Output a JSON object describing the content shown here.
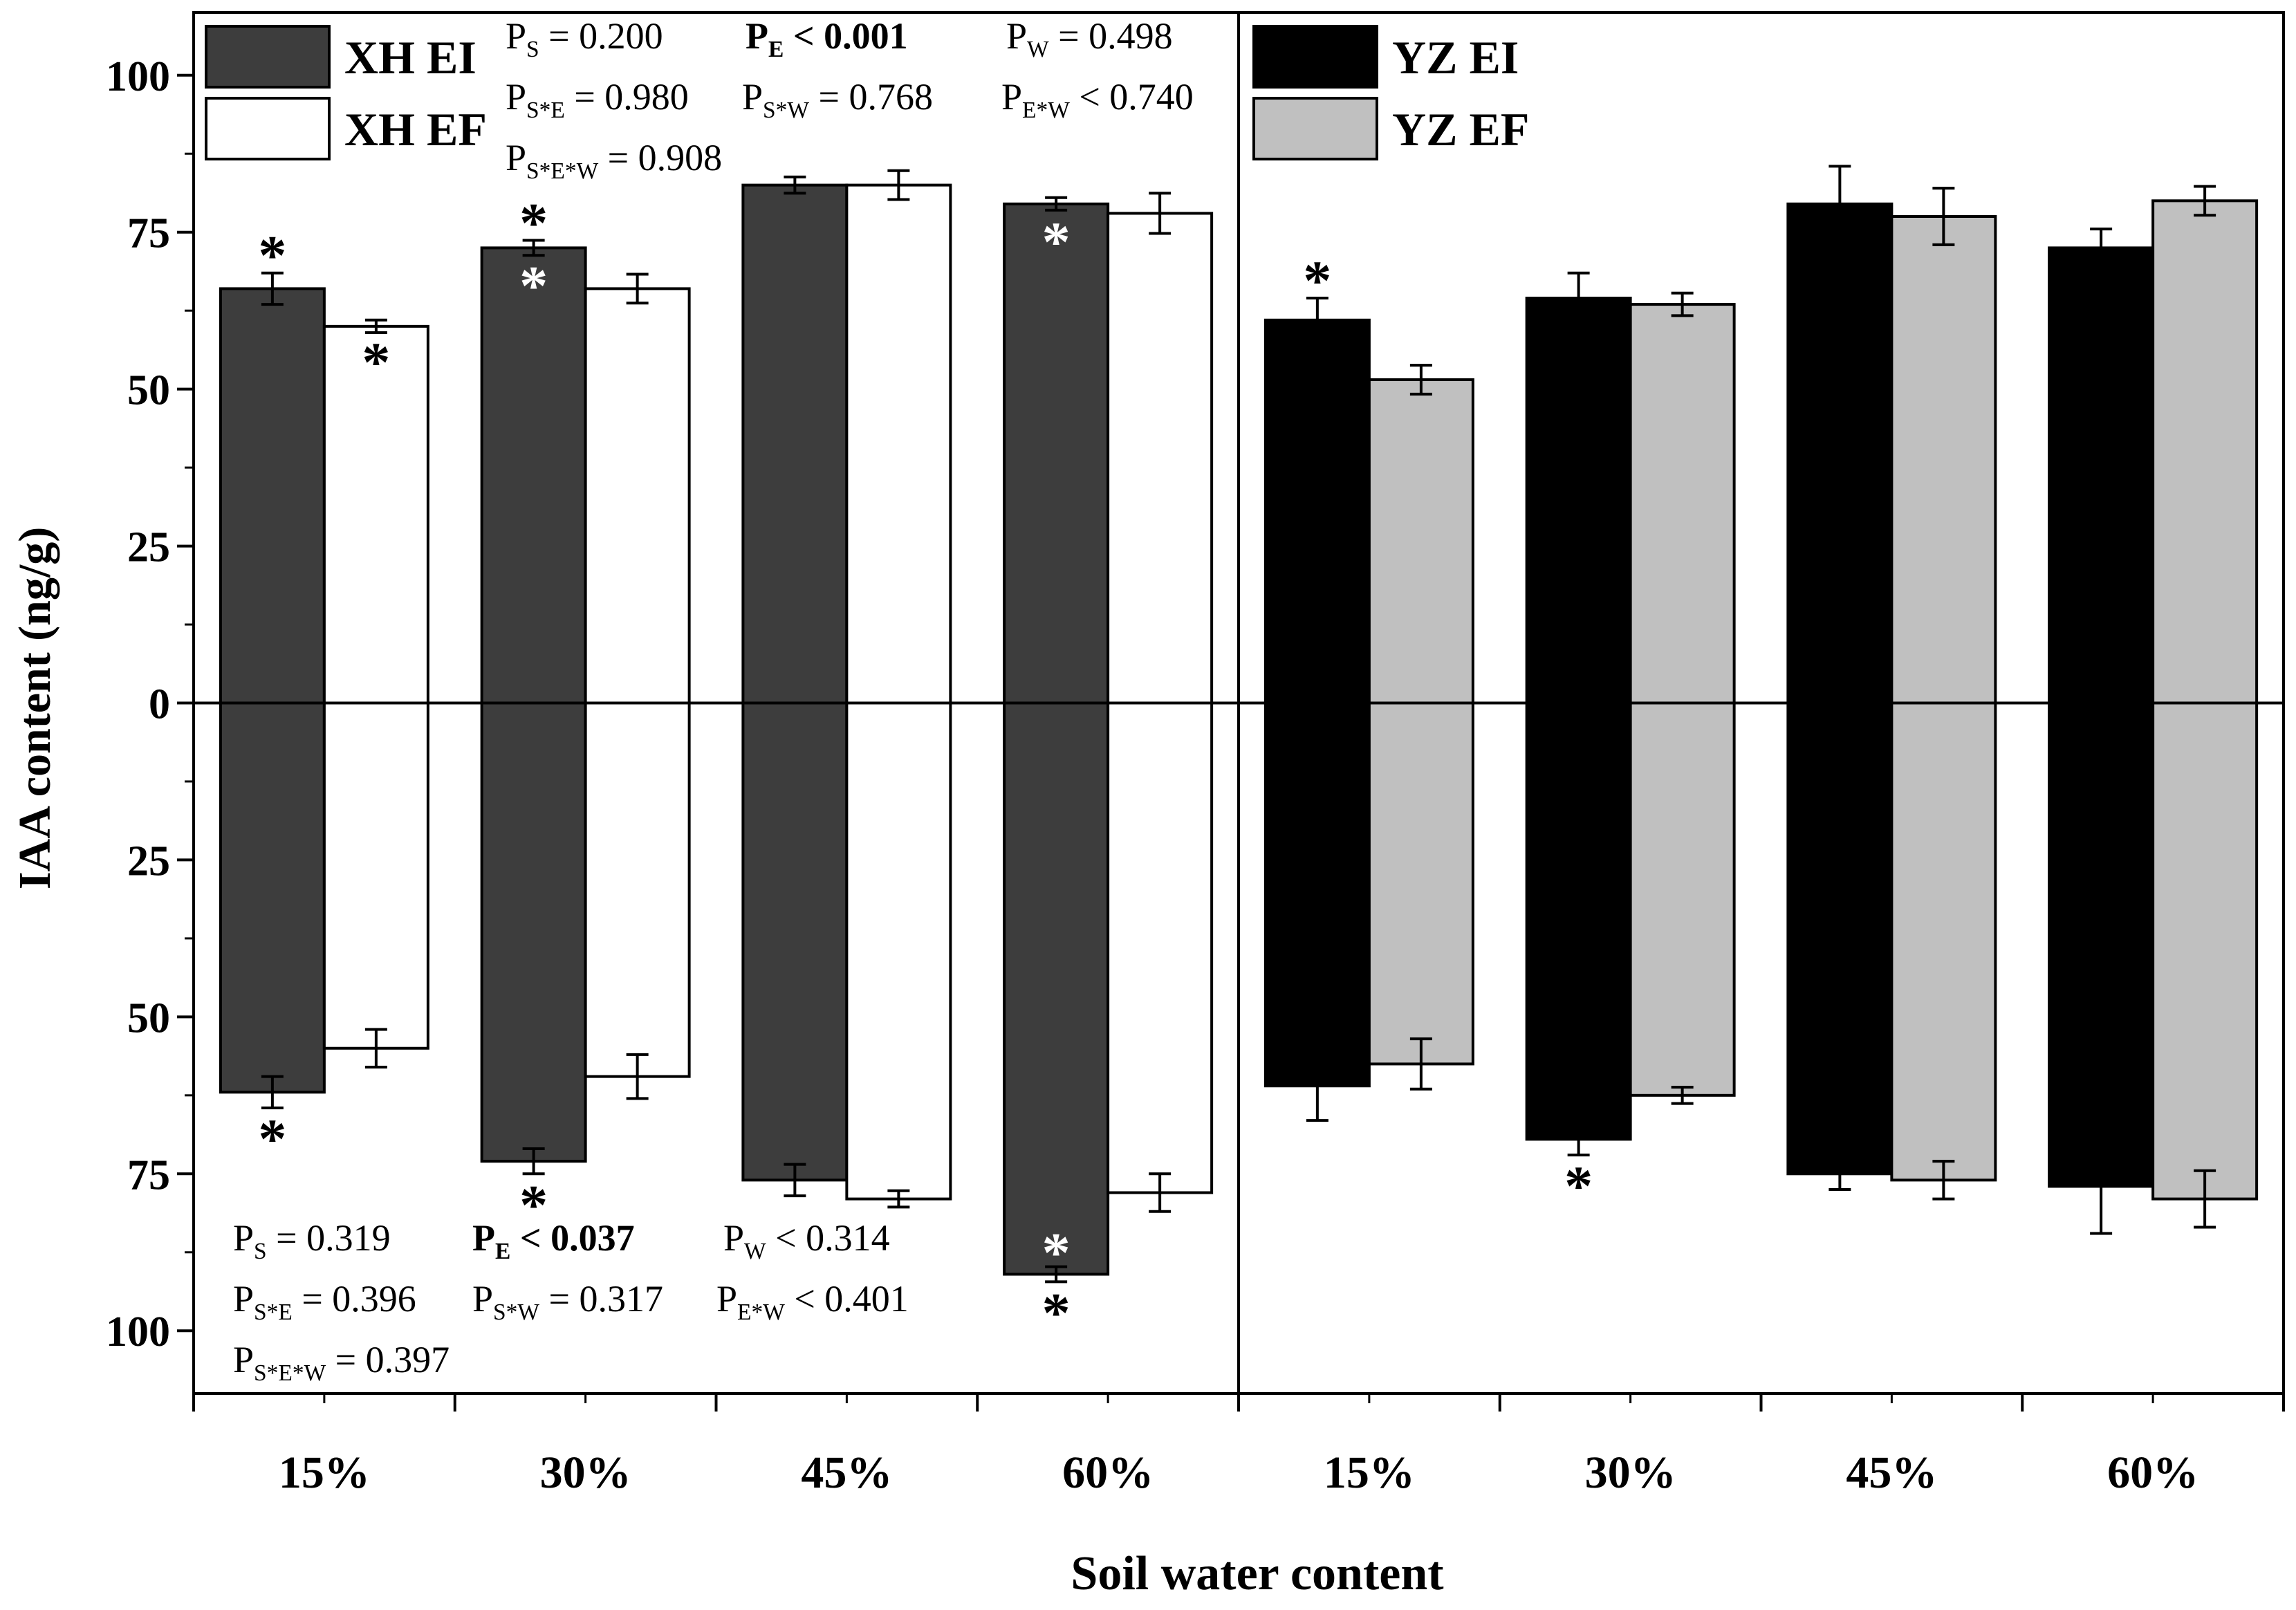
{
  "chart_data": {
    "type": "bar",
    "ylabel": "IAA content (ng/g)",
    "xlabel": "Soil water content",
    "y_axis": {
      "range": [
        -110,
        110
      ],
      "ticks": [
        100,
        75,
        50,
        25,
        0,
        -25,
        -50,
        -75,
        -100
      ],
      "tick_labels": [
        "100",
        "75",
        "50",
        "25",
        "0",
        "25",
        "50",
        "75",
        "100"
      ],
      "minor_ticks": [
        87.5,
        62.5,
        37.5,
        12.5,
        -12.5,
        -37.5,
        -62.5,
        -87.5
      ]
    },
    "grid": false,
    "legend_placement": "top-left of each panel",
    "panels": [
      {
        "id": "XH",
        "categories": [
          "15%",
          "30%",
          "45%",
          "60%"
        ],
        "series": [
          {
            "name": "XH EI",
            "color": "#3d3d3d",
            "upper": [
              66,
              72.5,
              82.5,
              79.5
            ],
            "upper_err": [
              2.5,
              1.2,
              1.3,
              1
            ],
            "lower": [
              -62,
              -73,
              -76,
              -91
            ],
            "lower_err": [
              2.5,
              2,
              2.5,
              1.2
            ]
          },
          {
            "name": "XH EF",
            "color": "#ffffff",
            "upper": [
              60,
              66,
              82.5,
              78
            ],
            "upper_err": [
              1,
              2.3,
              2.3,
              3.2
            ],
            "lower": [
              -55,
              -59.5,
              -79,
              -78
            ],
            "lower_err": [
              3,
              3.5,
              1.3,
              3
            ]
          }
        ],
        "stats_upper": [
          [
            {
              "sub": "S",
              "op": "=",
              "val": "0.200",
              "bold": false
            },
            {
              "sub": "E",
              "op": "<",
              "val": "0.001",
              "bold": true
            },
            {
              "sub": "W",
              "op": "=",
              "val": "0.498",
              "bold": false
            }
          ],
          [
            {
              "sub": "S*E",
              "op": "=",
              "val": "0.980",
              "bold": false
            },
            {
              "sub": "S*W",
              "op": "=",
              "val": "0.768",
              "bold": false
            },
            {
              "sub": "E*W",
              "op": "<",
              "val": "0.740",
              "bold": false
            }
          ],
          [
            {
              "sub": "S*E*W",
              "op": "=",
              "val": "0.908",
              "bold": false
            }
          ]
        ],
        "stats_lower": [
          [
            {
              "sub": "S",
              "op": "=",
              "val": "0.319",
              "bold": false
            },
            {
              "sub": "E",
              "op": "<",
              "val": "0.037",
              "bold": true
            },
            {
              "sub": "W",
              "op": "<",
              "val": "0.314",
              "bold": false
            }
          ],
          [
            {
              "sub": "S*E",
              "op": "=",
              "val": "0.396",
              "bold": false
            },
            {
              "sub": "S*W",
              "op": "=",
              "val": "0.317",
              "bold": false
            },
            {
              "sub": "E*W",
              "op": "<",
              "val": "0.401",
              "bold": false
            }
          ],
          [
            {
              "sub": "S*E*W",
              "op": "=",
              "val": "0.397",
              "bold": false
            }
          ]
        ],
        "asterisks": [
          {
            "cat": 0,
            "ser": 0,
            "half": "upper",
            "pos": "above",
            "color": "black"
          },
          {
            "cat": 0,
            "ser": 1,
            "half": "upper",
            "pos": "below",
            "color": "black"
          },
          {
            "cat": 1,
            "ser": 0,
            "half": "upper",
            "pos": "above",
            "color": "black"
          },
          {
            "cat": 1,
            "ser": 0,
            "half": "upper",
            "pos": "inside",
            "color": "white"
          },
          {
            "cat": 3,
            "ser": 0,
            "half": "upper",
            "pos": "inside",
            "color": "white"
          },
          {
            "cat": 0,
            "ser": 0,
            "half": "lower",
            "pos": "below",
            "color": "black"
          },
          {
            "cat": 1,
            "ser": 0,
            "half": "lower",
            "pos": "below",
            "color": "black"
          },
          {
            "cat": 3,
            "ser": 0,
            "half": "lower",
            "pos": "inside",
            "color": "white"
          },
          {
            "cat": 3,
            "ser": 0,
            "half": "lower",
            "pos": "below",
            "color": "black"
          }
        ]
      },
      {
        "id": "YZ",
        "categories": [
          "15%",
          "30%",
          "45%",
          "60%"
        ],
        "series": [
          {
            "name": "YZ EI",
            "color": "#000000",
            "upper": [
              61,
              64.5,
              79.5,
              72.5
            ],
            "upper_err": [
              3.5,
              4,
              6,
              3
            ],
            "lower": [
              -61,
              -69.5,
              -75,
              -77
            ],
            "lower_err": [
              5.5,
              2.5,
              2.5,
              7.5
            ]
          },
          {
            "name": "YZ EF",
            "color": "#c0c0c0",
            "upper": [
              51.5,
              63.5,
              77.5,
              80
            ],
            "upper_err": [
              2.3,
              1.8,
              4.5,
              2.3
            ],
            "lower": [
              -57.5,
              -62.5,
              -76,
              -79
            ],
            "lower_err": [
              4,
              1.3,
              3,
              4.5
            ]
          }
        ],
        "asterisks": [
          {
            "cat": 0,
            "ser": 0,
            "half": "upper",
            "pos": "above",
            "color": "black"
          },
          {
            "cat": 1,
            "ser": 0,
            "half": "lower",
            "pos": "below",
            "color": "black"
          }
        ]
      }
    ]
  }
}
